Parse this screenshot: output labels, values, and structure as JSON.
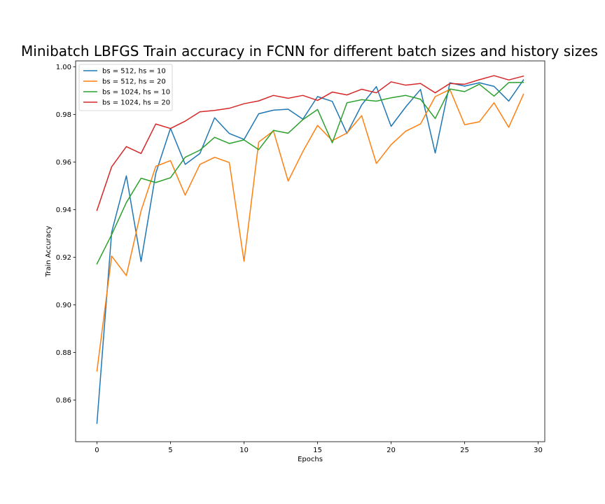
{
  "chart_data": {
    "type": "line",
    "title": "Minibatch LBFGS Train accuracy in FCNN for different batch sizes and history sizes",
    "xlabel": "Epochs",
    "ylabel": "Train Accuracy",
    "xlim": [
      -1.45,
      30.45
    ],
    "ylim": [
      0.8425,
      1.0025
    ],
    "xticks": [
      0,
      5,
      10,
      15,
      20,
      25,
      30
    ],
    "xtick_labels": [
      "0",
      "5",
      "10",
      "15",
      "20",
      "25",
      "30"
    ],
    "yticks": [
      0.86,
      0.88,
      0.9,
      0.92,
      0.94,
      0.96,
      0.98,
      1.0
    ],
    "ytick_labels": [
      "0.86",
      "0.88",
      "0.90",
      "0.92",
      "0.94",
      "0.96",
      "0.98",
      "1.00"
    ],
    "grid": false,
    "legend_position": "top-left",
    "x": [
      0,
      1,
      2,
      3,
      4,
      5,
      6,
      7,
      8,
      9,
      10,
      11,
      12,
      13,
      14,
      15,
      16,
      17,
      18,
      19,
      20,
      21,
      22,
      23,
      24,
      25,
      26,
      27,
      28,
      29
    ],
    "series": [
      {
        "name": "bs = 512, hs = 10",
        "color": "#1f77b4",
        "values": [
          0.8502,
          0.9305,
          0.9542,
          0.9182,
          0.9553,
          0.9742,
          0.959,
          0.9636,
          0.9786,
          0.972,
          0.9695,
          0.9803,
          0.9818,
          0.9822,
          0.978,
          0.9875,
          0.9855,
          0.972,
          0.984,
          0.9917,
          0.975,
          0.9832,
          0.9905,
          0.9638,
          0.9933,
          0.9919,
          0.9933,
          0.9918,
          0.9856,
          0.9945
        ]
      },
      {
        "name": "bs = 512, hs = 20",
        "color": "#ff7f0e",
        "values": [
          0.8722,
          0.9205,
          0.9123,
          0.9395,
          0.9582,
          0.9606,
          0.9461,
          0.959,
          0.962,
          0.9598,
          0.9183,
          0.9684,
          0.9731,
          0.952,
          0.9644,
          0.9754,
          0.969,
          0.9722,
          0.9795,
          0.9594,
          0.9673,
          0.973,
          0.976,
          0.9875,
          0.9905,
          0.9757,
          0.9769,
          0.9849,
          0.9746,
          0.9885
        ]
      },
      {
        "name": "bs = 1024, hs = 10",
        "color": "#2ca02c",
        "values": [
          0.9172,
          0.9295,
          0.943,
          0.9532,
          0.9514,
          0.9534,
          0.962,
          0.965,
          0.9704,
          0.9678,
          0.9693,
          0.9652,
          0.9733,
          0.9721,
          0.9778,
          0.9821,
          0.9681,
          0.9849,
          0.9862,
          0.9856,
          0.987,
          0.988,
          0.9864,
          0.9783,
          0.9907,
          0.9896,
          0.9927,
          0.9877,
          0.9934,
          0.9935
        ]
      },
      {
        "name": "bs = 1024, hs = 20",
        "color": "#d62728",
        "values": [
          0.9397,
          0.958,
          0.9665,
          0.9636,
          0.976,
          0.9741,
          0.9772,
          0.9811,
          0.9817,
          0.9826,
          0.9845,
          0.9857,
          0.988,
          0.9868,
          0.988,
          0.9859,
          0.9894,
          0.9882,
          0.9906,
          0.9891,
          0.9937,
          0.9923,
          0.993,
          0.9891,
          0.993,
          0.9927,
          0.9946,
          0.9963,
          0.9945,
          0.9961
        ]
      }
    ]
  }
}
